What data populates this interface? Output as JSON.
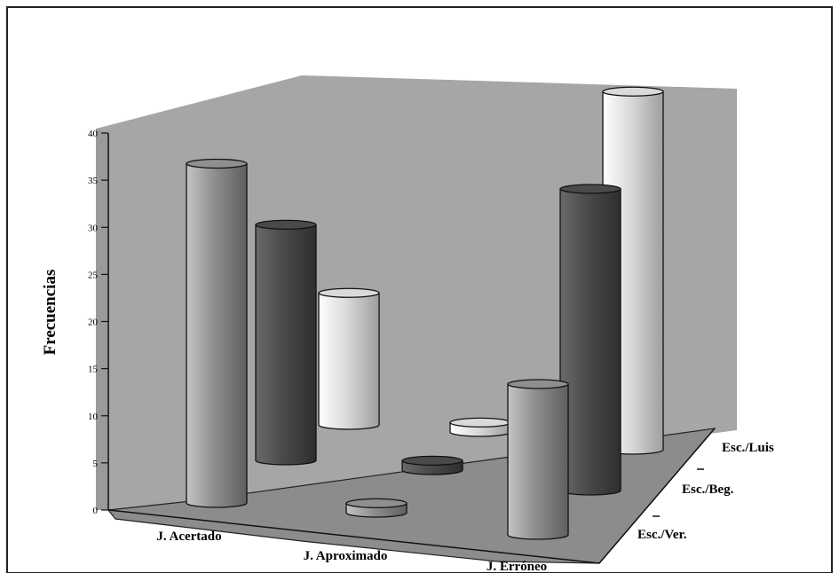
{
  "chart_data": {
    "type": "bar",
    "style": "3d-cylinder",
    "title": "",
    "ylabel": "Frecuencias",
    "xlabel": "",
    "ylim": [
      0,
      40
    ],
    "yticks": [
      "0",
      "5",
      "10",
      "15",
      "20",
      "25",
      "30",
      "35",
      "40"
    ],
    "categories": [
      "J. Acertado",
      "J. Aproximado",
      "J. Erróneo"
    ],
    "series": [
      {
        "name": "Esc./Ver.",
        "values": [
          36,
          1,
          16
        ],
        "color": "#8f8f8f"
      },
      {
        "name": "Esc./Beg.",
        "values": [
          25,
          1,
          32
        ],
        "color": "#4a4a4a"
      },
      {
        "name": "Esc./Luis",
        "values": [
          14,
          1,
          38
        ],
        "color": "#dadada"
      }
    ],
    "wall_color": "#a6a6a6",
    "floor_color": "#8c8c8c",
    "grid": false
  }
}
